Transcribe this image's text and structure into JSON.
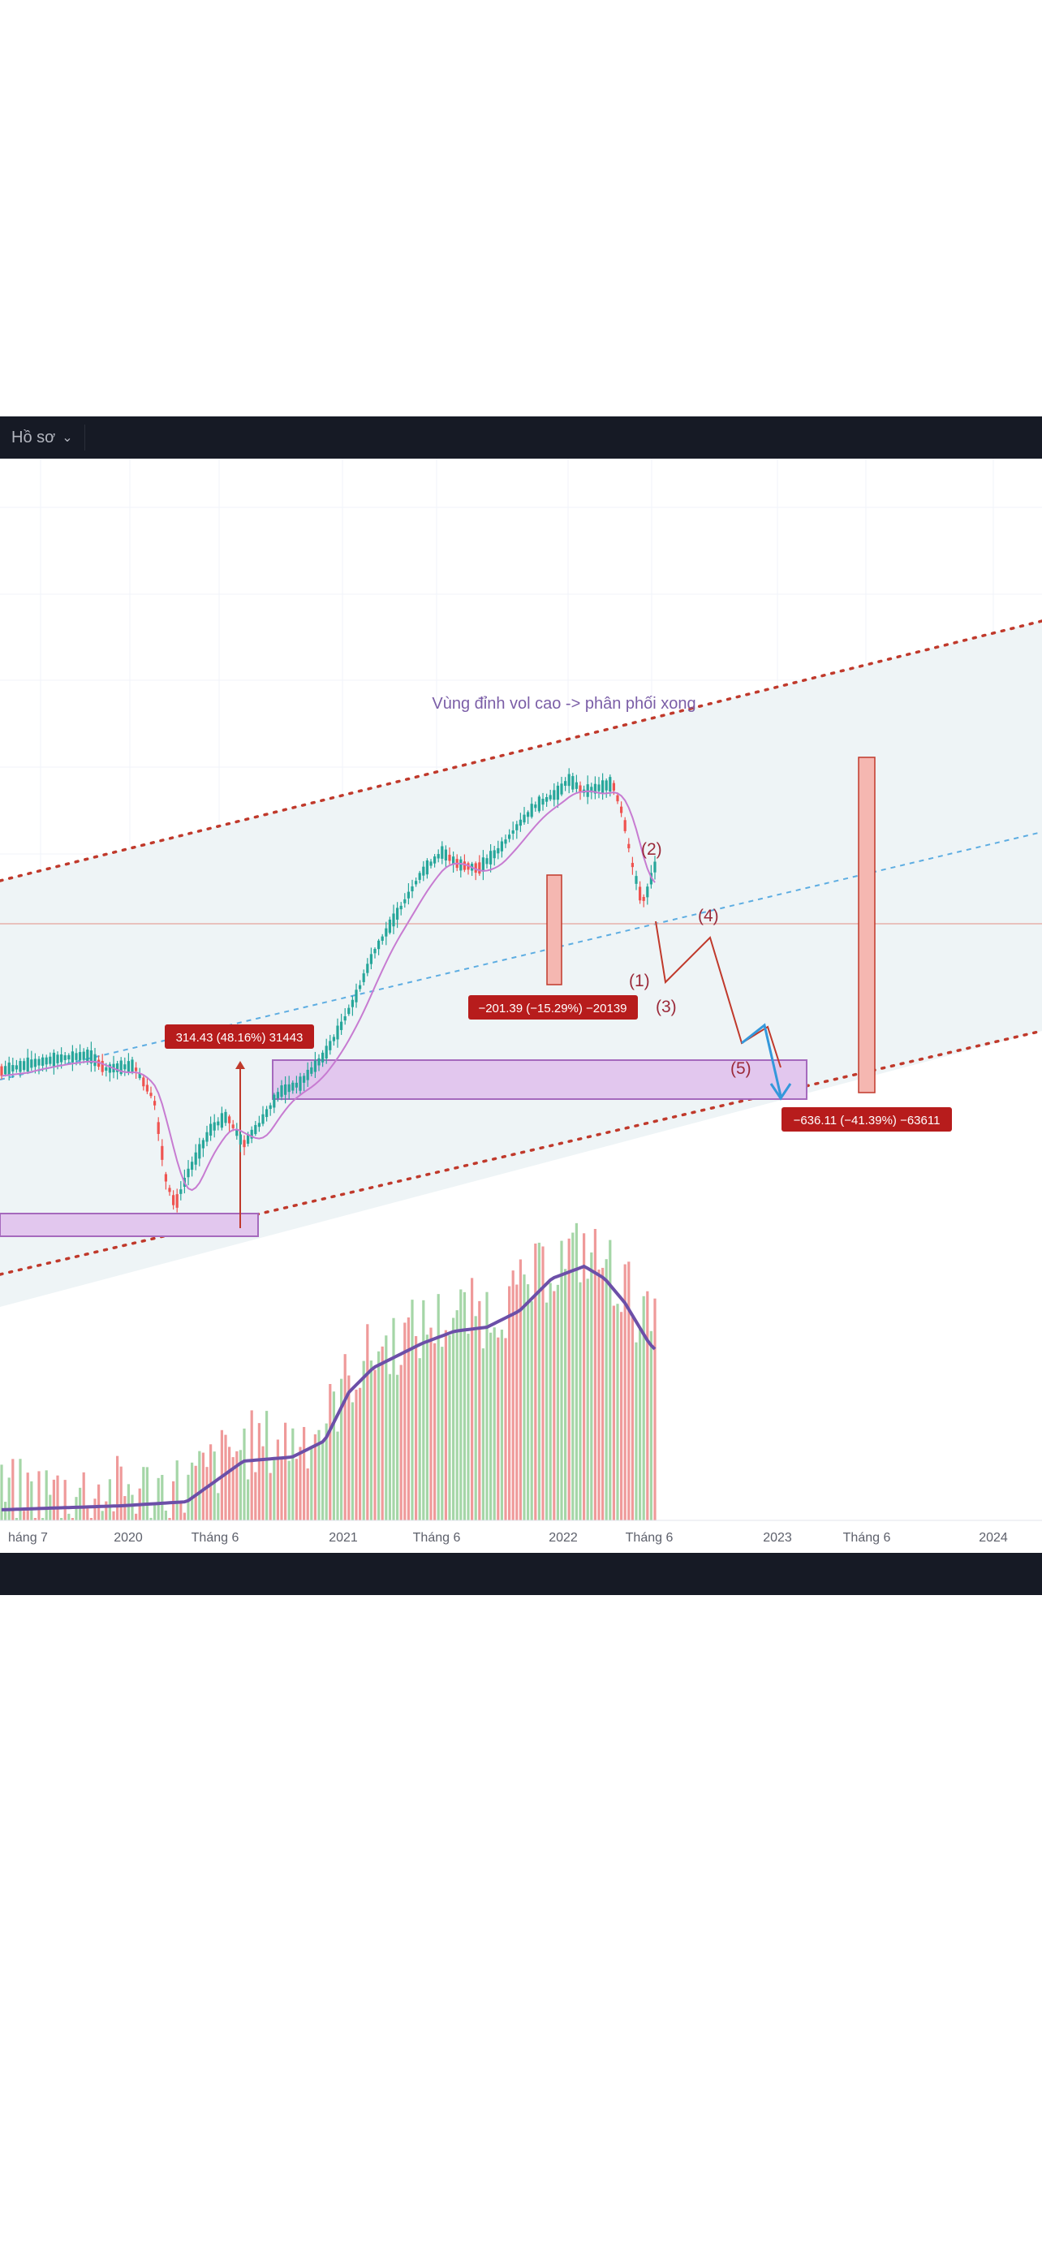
{
  "toolbar": {
    "profile_label": "Hồ sơ",
    "chevron_icon": "chevron-down-icon"
  },
  "colors": {
    "topbar": "#161a25",
    "channel_fill": "#eef4f6",
    "channel_border": "#c0392b",
    "midline": "#5dade2",
    "zone_fill": "#e2c7ee",
    "zone_stroke": "#a569bd",
    "candle_up": "#26a69a",
    "candle_down": "#ef5350",
    "ma": "#c77bd1",
    "vol_ma": "#6c4fa8",
    "label_red": "#b71c1c",
    "measure_fill": "#f5b7b1",
    "projection_red": "#c0392b",
    "projection_blue": "#3498db"
  },
  "chart_data": {
    "type": "candlestick",
    "x_ticks": [
      "háng 7",
      "2020",
      "Tháng 6",
      "2021",
      "Tháng 6",
      "2022",
      "Tháng 6",
      "2023",
      "Tháng 6",
      "2024"
    ],
    "annotation": "Vùng đỉnh vol cao -> phân phối xong",
    "measure_labels": [
      "314.43 (48.16%) 31443",
      "−201.39 (−15.29%) −20139",
      "−636.11 (−41.39%) −63611"
    ],
    "wave_labels": [
      "(1)",
      "(2)",
      "(3)",
      "(4)",
      "(5)"
    ],
    "channel": "ascending",
    "grid": true
  }
}
